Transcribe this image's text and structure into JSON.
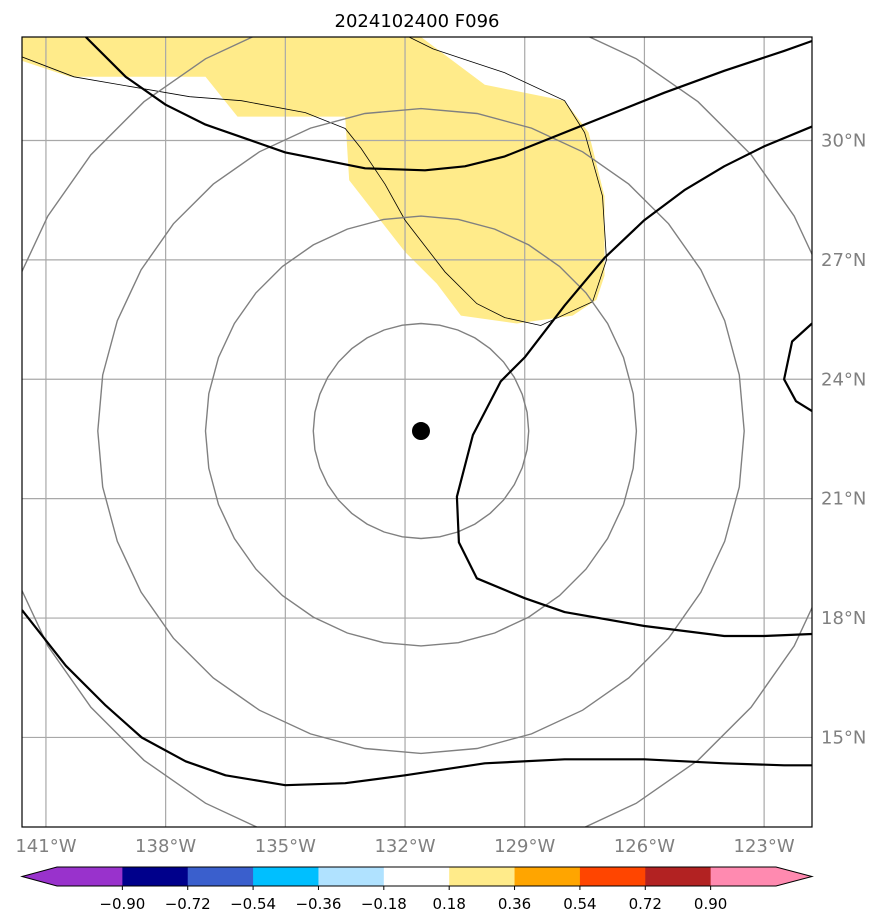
{
  "chart_data": {
    "type": "map",
    "title": "2024102400 F096",
    "map": {
      "lon_range": [
        -141.6,
        -121.8
      ],
      "lat_range": [
        12.75,
        32.6
      ],
      "lon_ticks": [
        -141,
        -138,
        -135,
        -132,
        -129,
        -126,
        -123
      ],
      "lon_tick_labels": [
        "141°W",
        "138°W",
        "135°W",
        "132°W",
        "129°W",
        "126°W",
        "123°W"
      ],
      "lat_ticks": [
        15,
        18,
        21,
        24,
        27,
        30
      ],
      "lat_tick_labels": [
        "15°N",
        "18°N",
        "21°N",
        "24°N",
        "27°N",
        "30°N"
      ],
      "grid": true,
      "center_marker": {
        "lon": -131.6,
        "lat": 22.7
      },
      "range_rings_deg": [
        2.7,
        5.4,
        8.1,
        10.8
      ]
    },
    "filled_region": {
      "color": "#ffeb8a",
      "polygon": [
        [
          -141.6,
          32.6
        ],
        [
          -131.6,
          32.6
        ],
        [
          -130.0,
          31.4
        ],
        [
          -128.0,
          31.0
        ],
        [
          -127.4,
          30.2
        ],
        [
          -127.0,
          28.6
        ],
        [
          -127.0,
          26.6
        ],
        [
          -127.2,
          26.0
        ],
        [
          -127.8,
          25.6
        ],
        [
          -129.2,
          25.4
        ],
        [
          -130.6,
          25.6
        ],
        [
          -131.2,
          26.4
        ],
        [
          -132.0,
          27.2
        ],
        [
          -133.4,
          29.0
        ],
        [
          -133.5,
          30.6
        ],
        [
          -134.0,
          30.6
        ],
        [
          -135.4,
          30.6
        ],
        [
          -136.2,
          30.6
        ],
        [
          -137.0,
          31.6
        ],
        [
          -138.6,
          31.6
        ],
        [
          -140.4,
          31.6
        ],
        [
          -141.6,
          32.0
        ]
      ]
    },
    "contours": [
      {
        "color": "#000000",
        "points": [
          [
            -140.0,
            32.6
          ],
          [
            -139.0,
            31.6
          ],
          [
            -138.0,
            30.9
          ],
          [
            -137.0,
            30.4
          ],
          [
            -135.0,
            29.7
          ],
          [
            -133.0,
            29.3
          ],
          [
            -131.5,
            29.25
          ],
          [
            -130.5,
            29.35
          ],
          [
            -129.5,
            29.6
          ],
          [
            -128.5,
            30.0
          ],
          [
            -127.0,
            30.6
          ],
          [
            -125.5,
            31.2
          ],
          [
            -124.0,
            31.75
          ],
          [
            -122.5,
            32.25
          ],
          [
            -121.8,
            32.5
          ]
        ]
      },
      {
        "color": "#000000",
        "points": [
          [
            -121.8,
            30.35
          ],
          [
            -123.0,
            29.85
          ],
          [
            -124.0,
            29.35
          ],
          [
            -125.0,
            28.75
          ],
          [
            -126.0,
            28.0
          ],
          [
            -127.0,
            27.05
          ],
          [
            -128.0,
            25.85
          ],
          [
            -129.0,
            24.55
          ],
          [
            -129.6,
            23.95
          ],
          [
            -130.3,
            22.6
          ],
          [
            -130.7,
            21.05
          ],
          [
            -130.65,
            19.9
          ],
          [
            -130.2,
            19.0
          ],
          [
            -129.0,
            18.5
          ],
          [
            -128.0,
            18.15
          ],
          [
            -126.0,
            17.8
          ],
          [
            -124.0,
            17.55
          ],
          [
            -123.0,
            17.55
          ],
          [
            -121.8,
            17.6
          ]
        ]
      },
      {
        "color": "#000000",
        "points": [
          [
            -121.8,
            25.4
          ],
          [
            -122.3,
            24.95
          ],
          [
            -122.5,
            24.0
          ],
          [
            -122.2,
            23.45
          ],
          [
            -121.8,
            23.2
          ]
        ]
      },
      {
        "color": "#000000",
        "points": [
          [
            -141.6,
            18.2
          ],
          [
            -140.5,
            16.8
          ],
          [
            -139.5,
            15.8
          ],
          [
            -138.6,
            15.0
          ],
          [
            -137.5,
            14.4
          ],
          [
            -136.5,
            14.05
          ],
          [
            -135.0,
            13.8
          ],
          [
            -133.5,
            13.85
          ],
          [
            -132.0,
            14.05
          ],
          [
            -130.0,
            14.35
          ],
          [
            -128.0,
            14.45
          ],
          [
            -126.0,
            14.45
          ],
          [
            -124.0,
            14.35
          ],
          [
            -122.5,
            14.3
          ],
          [
            -121.8,
            14.3
          ]
        ]
      }
    ],
    "outline": {
      "color": "#000000",
      "points": [
        [
          -141.6,
          32.1
        ],
        [
          -140.3,
          31.6
        ],
        [
          -137.4,
          31.1
        ],
        [
          -136.1,
          31.0
        ],
        [
          -134.5,
          30.7
        ],
        [
          -133.5,
          30.3
        ],
        [
          -133.1,
          29.8
        ],
        [
          -132.5,
          28.9
        ],
        [
          -132.0,
          28.0
        ],
        [
          -131.0,
          26.7
        ],
        [
          -130.2,
          25.9
        ],
        [
          -129.5,
          25.55
        ],
        [
          -128.6,
          25.35
        ],
        [
          -127.3,
          25.95
        ],
        [
          -126.95,
          27.0
        ],
        [
          -127.05,
          28.6
        ],
        [
          -127.5,
          30.2
        ],
        [
          -128.0,
          31.0
        ],
        [
          -129.5,
          31.7
        ],
        [
          -130.4,
          32.0
        ],
        [
          -131.3,
          32.3
        ],
        [
          -131.9,
          32.6
        ]
      ]
    },
    "colorbar": {
      "labels": [
        "−0.90",
        "−0.72",
        "−0.54",
        "−0.36",
        "−0.18",
        "0.18",
        "0.36",
        "0.54",
        "0.72",
        "0.90"
      ],
      "colors": [
        "#9932cc",
        "#00008b",
        "#3a5fcd",
        "#00bfff",
        "#b0e2ff",
        "#ffffff",
        "#ffeb8a",
        "#ffa500",
        "#ff4500",
        "#b22222",
        "#ff8ab0",
        "#ff8ab0"
      ]
    }
  }
}
